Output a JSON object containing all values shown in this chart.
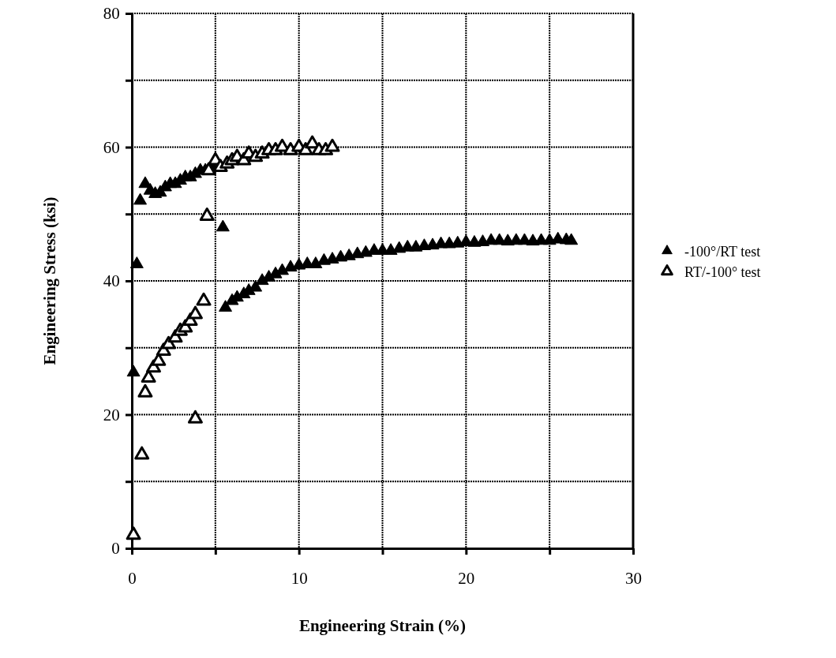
{
  "chart_data": {
    "type": "scatter",
    "xlabel": "Engineering Strain (%)",
    "ylabel": "Engineering Stress (ksi)",
    "xlim": [
      0,
      30
    ],
    "ylim": [
      0,
      80
    ],
    "xticks": [
      0,
      {
        "value": 5,
        "label": null
      },
      10,
      {
        "value": 15,
        "label": null
      },
      20,
      {
        "value": 25,
        "label": null
      },
      30
    ],
    "yticks": [
      0,
      {
        "value": 10,
        "label": null
      },
      20,
      {
        "value": 30,
        "label": null
      },
      40,
      {
        "value": 50,
        "label": null
      },
      60,
      {
        "value": 70,
        "label": null
      },
      80
    ],
    "grid": true,
    "legend": "right",
    "marker": "triangle",
    "series": [
      {
        "name": "-100°/RT test",
        "color": "#000000",
        "x": [
          0.1,
          0.3,
          0.5,
          0.8,
          1.1,
          1.4,
          1.7,
          2.0,
          2.3,
          2.6,
          2.9,
          3.2,
          3.5,
          3.8,
          4.1,
          4.4,
          4.8,
          5.45,
          5.6,
          6.0,
          6.3,
          6.7,
          7.0,
          7.4,
          7.8,
          8.2,
          8.6,
          9.0,
          9.5,
          10,
          10.5,
          11,
          11.5,
          12,
          12.5,
          13,
          13.5,
          14,
          14.5,
          15,
          15.5,
          16,
          16.5,
          17,
          17.5,
          18,
          18.5,
          19,
          19.5,
          20,
          20.5,
          21,
          21.5,
          22,
          22.5,
          23,
          23.5,
          24,
          24.5,
          25,
          25.5,
          26,
          26.3
        ],
        "values": [
          26.3,
          42.5,
          52,
          54.5,
          53.5,
          53,
          53.2,
          54,
          54.5,
          54.5,
          55,
          55.5,
          55.5,
          56,
          56.5,
          56.5,
          57,
          48,
          36,
          37,
          37.5,
          38,
          38.5,
          39,
          40,
          40.5,
          41,
          41.5,
          42,
          42.3,
          42.5,
          42.5,
          43,
          43.2,
          43.5,
          43.7,
          44,
          44.2,
          44.5,
          44.5,
          44.5,
          44.8,
          45,
          45,
          45.2,
          45.3,
          45.5,
          45.5,
          45.6,
          45.8,
          45.7,
          45.8,
          46,
          46,
          45.9,
          46,
          46,
          45.9,
          46,
          46,
          46.2,
          46.1,
          46
        ]
      },
      {
        "name": "RT/-100° test",
        "color": "#000000",
        "x": [
          0.1,
          0.6,
          0.8,
          1.0,
          1.3,
          1.6,
          1.9,
          2.2,
          2.6,
          2.9,
          3.2,
          3.5,
          3.8,
          3.8,
          4.3,
          4.5,
          4.6,
          5.0,
          5.3,
          5.7,
          6.0,
          6.3,
          6.7,
          7.0,
          7.4,
          7.8,
          8.2,
          8.6,
          9.0,
          9.5,
          10,
          10.4,
          10.8,
          11.2,
          11.6,
          12
        ],
        "values": [
          2,
          14,
          23.3,
          25.5,
          27,
          28,
          29.5,
          30.5,
          31.5,
          32.5,
          33,
          34,
          35,
          19.4,
          37,
          49.7,
          56.5,
          58,
          57,
          57.5,
          58,
          58.5,
          58,
          59,
          58.5,
          59,
          59.5,
          59.5,
          60,
          59.5,
          60,
          59.5,
          60.5,
          59.5,
          59.5,
          60
        ]
      }
    ]
  }
}
